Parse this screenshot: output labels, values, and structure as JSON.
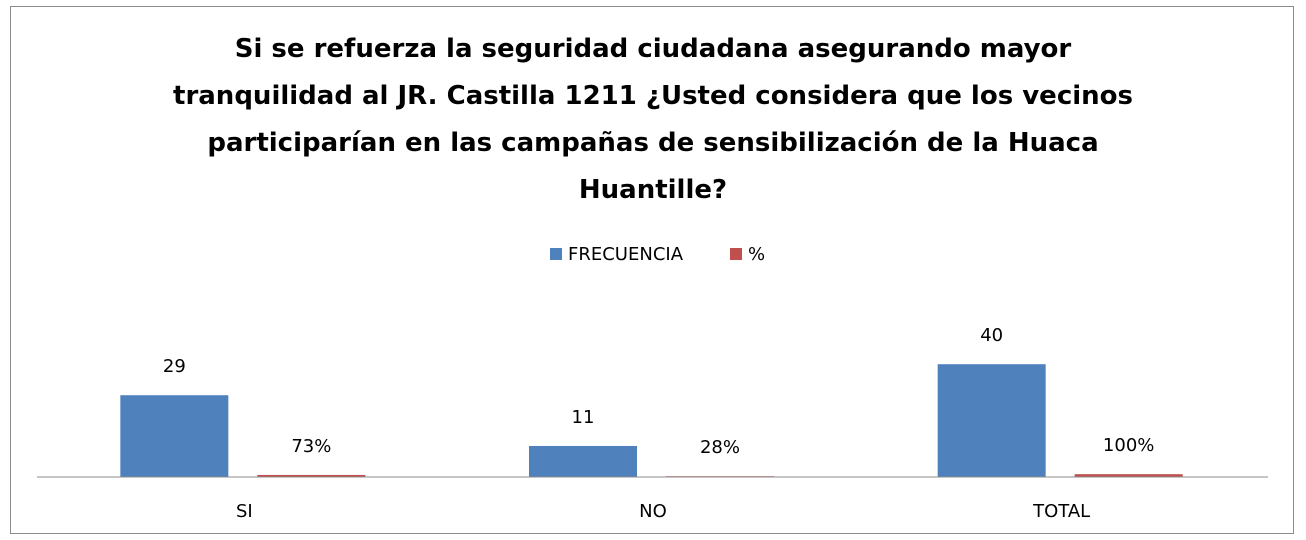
{
  "chart_data": {
    "type": "bar",
    "title": "Si se refuerza la seguridad ciudadana asegurando mayor tranquilidad al JR. Castilla 1211 ¿Usted considera que los vecinos participarían en las campañas de sensibilización de la Huaca Huantille?",
    "categories": [
      "SI",
      "NO",
      "TOTAL"
    ],
    "series": [
      {
        "name": "FRECUENCIA",
        "color": "#4f81bd",
        "values": [
          29,
          11,
          40
        ]
      },
      {
        "name": "%",
        "color": "#c0504d",
        "values": [
          0.73,
          0.28,
          1
        ],
        "value_labels": [
          "73%",
          "28%",
          "100%"
        ]
      }
    ],
    "ylim": [
      0,
      50
    ],
    "legend": "top"
  }
}
